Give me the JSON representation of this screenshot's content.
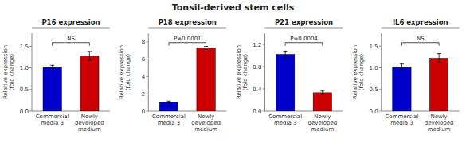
{
  "title": "Tonsil-derived stem cells",
  "chart_data": [
    {
      "type": "bar",
      "title": "P16 expression",
      "ylabel": "Relative expression\n(fold change)",
      "categories": [
        "Commercial\nmedia 3",
        "Newly\ndeveloped\nmedium"
      ],
      "values": [
        1.02,
        1.28
      ],
      "errors": [
        0.04,
        0.1
      ],
      "colors": [
        "#0000cc",
        "#cc0000"
      ],
      "annotation": "NS",
      "ylim": [
        0,
        1.8
      ],
      "yticks": [
        {
          "value": 0,
          "label": "0.0"
        },
        0.5,
        {
          "value": 1,
          "label": "1.0"
        },
        1.5
      ],
      "grid": false
    },
    {
      "type": "bar",
      "title": "P18 expression",
      "ylabel": "Relative expression\n(fold change)",
      "categories": [
        "Commercial\nmedia 3",
        "Newly\ndeveloped\nmedium"
      ],
      "values": [
        1.05,
        7.3
      ],
      "errors": [
        0.12,
        0.18
      ],
      "colors": [
        "#0000cc",
        "#cc0000"
      ],
      "annotation": "P=0.0001",
      "ylim": [
        0,
        9.0
      ],
      "yticks": [
        0,
        2,
        4,
        6,
        8
      ],
      "grid": false
    },
    {
      "type": "bar",
      "title": "P21 expression",
      "ylabel": "Relative expression\n(fold change)",
      "categories": [
        "Commercial\nmedia 3",
        "Newly\ndeveloped\nmedium"
      ],
      "values": [
        1.02,
        0.33
      ],
      "errors": [
        0.06,
        0.03
      ],
      "colors": [
        "#0000cc",
        "#cc0000"
      ],
      "annotation": "P=0.0004",
      "ylim": [
        0,
        1.4
      ],
      "yticks": [
        {
          "value": 0,
          "label": "0.0"
        },
        0.4,
        0.8,
        1.2
      ],
      "grid": false
    },
    {
      "type": "bar",
      "title": "IL6 expression",
      "ylabel": "Relative expression\n(fold change)",
      "categories": [
        "Commercial\nmedia 3",
        "Newly\ndeveloped\nmedium"
      ],
      "values": [
        1.02,
        1.22
      ],
      "errors": [
        0.07,
        0.11
      ],
      "colors": [
        "#0000cc",
        "#cc0000"
      ],
      "annotation": "NS",
      "ylim": [
        0,
        1.8
      ],
      "yticks": [
        {
          "value": 0,
          "label": "0.0"
        },
        0.5,
        {
          "value": 1,
          "label": "1.0"
        },
        1.5
      ],
      "grid": false
    }
  ]
}
